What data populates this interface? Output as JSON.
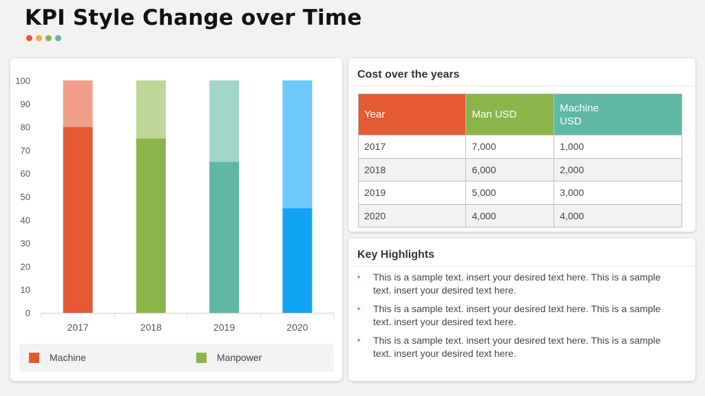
{
  "title": "KPI Style Change over Time",
  "dot_colors": [
    "#e35a35",
    "#f2a941",
    "#8bb54a",
    "#5fb8a3"
  ],
  "chart_data": {
    "type": "bar",
    "stacked": true,
    "categories": [
      "2017",
      "2018",
      "2019",
      "2020"
    ],
    "series": [
      {
        "name": "Machine",
        "values": [
          80,
          75,
          65,
          45
        ],
        "colors": [
          "#e35a35",
          "#8bb54a",
          "#5fb8a3",
          "#12a3f5"
        ]
      },
      {
        "name": "Manpower",
        "values": [
          20,
          25,
          35,
          55
        ],
        "colors": [
          "#f0a08a",
          "#bdd798",
          "#a1d6c8",
          "#6ec8fc"
        ]
      }
    ],
    "ylim": [
      0,
      100
    ],
    "yticks": [
      0,
      10,
      20,
      30,
      40,
      50,
      60,
      70,
      80,
      90,
      100
    ],
    "grid": false,
    "legend": {
      "placement": "bottom",
      "items": [
        {
          "label": "Machine",
          "color": "#e35a35"
        },
        {
          "label": "Manpower",
          "color": "#8bb54a"
        }
      ]
    }
  },
  "table": {
    "title": "Cost over the years",
    "headers": [
      {
        "label": "Year",
        "color": "#e35a35"
      },
      {
        "label": "Man USD",
        "color": "#8bb54a"
      },
      {
        "label": "Machine USD",
        "color": "#5fb8a3"
      }
    ],
    "rows": [
      [
        "2017",
        "7,000",
        "1,000"
      ],
      [
        "2018",
        "6,000",
        "2,000"
      ],
      [
        "2019",
        "5,000",
        "3,000"
      ],
      [
        "2020",
        "4,000",
        "4,000"
      ]
    ]
  },
  "highlights": {
    "title": "Key Highlights",
    "bullet": "•",
    "items": [
      "This is a sample text. insert your desired text here. This is a sample text. insert your desired text here.",
      "This is a sample text. insert your desired text here. This is a sample text. insert your desired text here.",
      "This is a sample text. insert your desired text here. This is a sample text. insert your desired text here."
    ]
  }
}
